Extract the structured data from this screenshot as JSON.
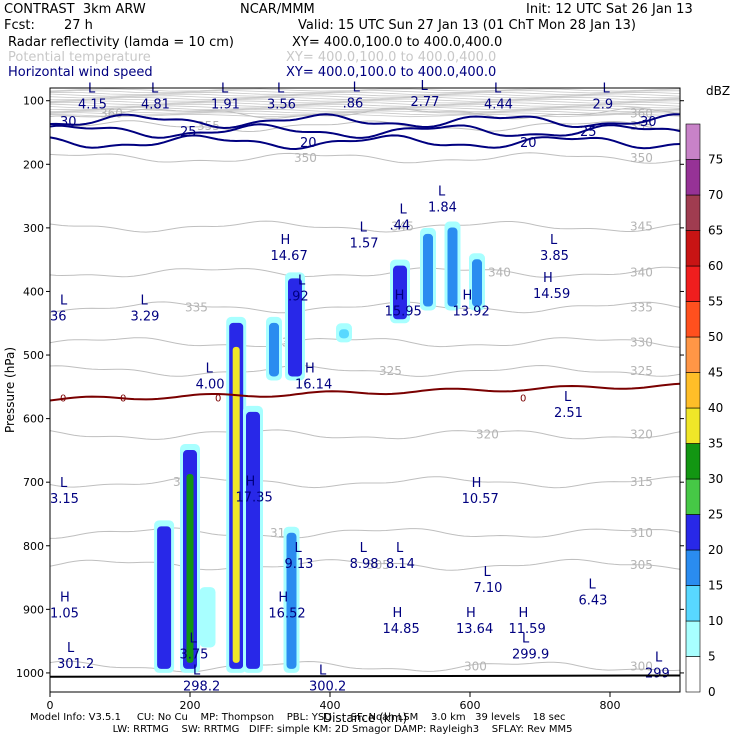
{
  "header": {
    "model": "CONTRAST  3km ARW",
    "center": "NCAR/MMM",
    "init": "Init: 12 UTC Sat 26 Jan 13",
    "fcst_label": "Fcst:",
    "fcst_value": "27 h",
    "valid": "Valid: 15 UTC Sun 27 Jan 13 (01 ChT Mon 28 Jan 13)",
    "fields": [
      {
        "name": "Radar reflectivity (lamda = 10 cm)",
        "xy": "XY= 400.0,100.0 to 400.0,400.0",
        "color": "#000000"
      },
      {
        "name": "Potential temperature",
        "xy": "XY= 400.0,100.0 to 400.0,400.0",
        "color": "#c8c8c8"
      },
      {
        "name": "Horizontal wind speed",
        "xy": "XY= 400.0,100.0 to 400.0,400.0",
        "color": "#000080"
      }
    ]
  },
  "footer": {
    "line1": "Model Info: V3.5.1     CU: No Cu    MP: Thompson    PBL: YSU      SF: Noah LSM    3.0 km   39 levels    18 sec",
    "line2": "                          LW: RRTMG    SW: RRTMG   DIFF: simple KM: 2D Smagor DAMP: Rayleigh3    SFLAY: Rev MM5"
  },
  "chart_data": {
    "type": "heatmap",
    "xlabel": "Distance (km)",
    "ylabel": "Pressure (hPa)",
    "xlim": [
      0,
      900
    ],
    "ylim": [
      1030,
      80
    ],
    "x_ticks": [
      0,
      200,
      400,
      600,
      800
    ],
    "y_ticks": [
      100,
      200,
      300,
      400,
      500,
      600,
      700,
      800,
      900,
      1000
    ],
    "colorbar": {
      "unit": "dBZ",
      "levels": [
        0,
        5,
        10,
        15,
        20,
        25,
        30,
        35,
        40,
        45,
        50,
        55,
        60,
        65,
        70,
        75
      ],
      "colors": [
        "#ffffff",
        "#a8ffff",
        "#58d8ff",
        "#2a8cf0",
        "#2828e8",
        "#46c846",
        "#129612",
        "#f0e628",
        "#ffbe28",
        "#ff9646",
        "#ff501e",
        "#f01e1e",
        "#c81414",
        "#a03c50",
        "#963296",
        "#c882c8"
      ]
    },
    "reflectivity_cells": [
      {
        "x": 163,
        "p_top": 760,
        "p_bot": 1000,
        "dbz": 20
      },
      {
        "x": 200,
        "p_top": 640,
        "p_bot": 1000,
        "dbz": 30
      },
      {
        "x": 225,
        "p_top": 865,
        "p_bot": 960,
        "dbz": 5
      },
      {
        "x": 266,
        "p_top": 440,
        "p_bot": 1000,
        "dbz": 35
      },
      {
        "x": 290,
        "p_top": 580,
        "p_bot": 1000,
        "dbz": 20
      },
      {
        "x": 320,
        "p_top": 440,
        "p_bot": 540,
        "dbz": 15
      },
      {
        "x": 350,
        "p_top": 370,
        "p_bot": 540,
        "dbz": 20
      },
      {
        "x": 345,
        "p_top": 770,
        "p_bot": 1000,
        "dbz": 15
      },
      {
        "x": 420,
        "p_top": 450,
        "p_bot": 480,
        "dbz": 10
      },
      {
        "x": 500,
        "p_top": 350,
        "p_bot": 450,
        "dbz": 20
      },
      {
        "x": 540,
        "p_top": 300,
        "p_bot": 430,
        "dbz": 15
      },
      {
        "x": 575,
        "p_top": 290,
        "p_bot": 430,
        "dbz": 15
      },
      {
        "x": 610,
        "p_top": 340,
        "p_bot": 430,
        "dbz": 15
      }
    ],
    "theta_contours": [
      {
        "label": "360",
        "p": 120
      },
      {
        "label": "355",
        "p": 140
      },
      {
        "label": "350",
        "p": 190
      },
      {
        "label": "345",
        "p": 298
      },
      {
        "label": "340",
        "p": 370
      },
      {
        "label": "335",
        "p": 425
      },
      {
        "label": "330",
        "p": 480
      },
      {
        "label": "325",
        "p": 525
      },
      {
        "label": "320",
        "p": 625
      },
      {
        "label": "315",
        "p": 700
      },
      {
        "label": "310",
        "p": 780
      },
      {
        "label": "305",
        "p": 830
      },
      {
        "label": "300",
        "p": 990
      }
    ],
    "wind_contours": [
      {
        "label": "30",
        "p": 132
      },
      {
        "label": "25",
        "p": 148
      },
      {
        "label": "20",
        "p": 165
      }
    ],
    "zero_line": {
      "label": "0",
      "p": 570
    },
    "extrema": [
      {
        "t": "L",
        "v": "4.15",
        "x": 40,
        "p": 100
      },
      {
        "t": "L",
        "v": "4.81",
        "x": 130,
        "p": 100
      },
      {
        "t": "L",
        "v": "1.91",
        "x": 230,
        "p": 100
      },
      {
        "t": "L",
        "v": "3.56",
        "x": 310,
        "p": 100
      },
      {
        "t": "L",
        "v": ".86",
        "x": 418,
        "p": 98
      },
      {
        "t": "L",
        "v": "2.77",
        "x": 515,
        "p": 96
      },
      {
        "t": "L",
        "v": "4.44",
        "x": 620,
        "p": 100
      },
      {
        "t": "L",
        "v": "2.9",
        "x": 775,
        "p": 100
      },
      {
        "t": "L",
        "v": "1.84",
        "x": 540,
        "p": 262
      },
      {
        "t": "L",
        "v": ".44",
        "x": 485,
        "p": 290
      },
      {
        "t": "L",
        "v": "1.57",
        "x": 428,
        "p": 318
      },
      {
        "t": "H",
        "v": "14.67",
        "x": 315,
        "p": 338
      },
      {
        "t": "L",
        "v": "3.85",
        "x": 700,
        "p": 338
      },
      {
        "t": "L",
        "v": "3.29",
        "x": 115,
        "p": 433
      },
      {
        "t": "L",
        "v": "36",
        "x": 0,
        "p": 433
      },
      {
        "t": "L",
        "v": ".92",
        "x": 340,
        "p": 402
      },
      {
        "t": "H",
        "v": "15.95",
        "x": 478,
        "p": 425
      },
      {
        "t": "H",
        "v": "13.92",
        "x": 575,
        "p": 425
      },
      {
        "t": "H",
        "v": "14.59",
        "x": 690,
        "p": 398
      },
      {
        "t": "L",
        "v": "4.00",
        "x": 208,
        "p": 540
      },
      {
        "t": "H",
        "v": "16.14",
        "x": 350,
        "p": 540
      },
      {
        "t": "L",
        "v": "2.51",
        "x": 720,
        "p": 585
      },
      {
        "t": "L",
        "v": "3.15",
        "x": 0,
        "p": 720
      },
      {
        "t": "H",
        "v": "17.35",
        "x": 265,
        "p": 718
      },
      {
        "t": "H",
        "v": "10.57",
        "x": 588,
        "p": 720
      },
      {
        "t": "L",
        "v": "9.13",
        "x": 335,
        "p": 822
      },
      {
        "t": "L",
        "v": "8.98",
        "x": 428,
        "p": 822
      },
      {
        "t": "L",
        "v": "8.14",
        "x": 480,
        "p": 822
      },
      {
        "t": "L",
        "v": "7.10",
        "x": 605,
        "p": 860
      },
      {
        "t": "L",
        "v": "6.43",
        "x": 755,
        "p": 880
      },
      {
        "t": "H",
        "v": "1.05",
        "x": 0,
        "p": 900
      },
      {
        "t": "H",
        "v": "16.52",
        "x": 312,
        "p": 900
      },
      {
        "t": "H",
        "v": "14.85",
        "x": 475,
        "p": 925
      },
      {
        "t": "H",
        "v": "13.64",
        "x": 580,
        "p": 925
      },
      {
        "t": "H",
        "v": "11.59",
        "x": 655,
        "p": 925
      },
      {
        "t": "L",
        "v": "3.75",
        "x": 185,
        "p": 965
      },
      {
        "t": "L",
        "v": "301.2",
        "x": 10,
        "p": 980
      },
      {
        "t": "L",
        "v": "299.9",
        "x": 660,
        "p": 965
      },
      {
        "t": "L",
        "v": "298.2",
        "x": 190,
        "p": 1015
      },
      {
        "t": "L",
        "v": "300.2",
        "x": 370,
        "p": 1015
      },
      {
        "t": "L",
        "v": "299",
        "x": 850,
        "p": 995
      }
    ]
  }
}
